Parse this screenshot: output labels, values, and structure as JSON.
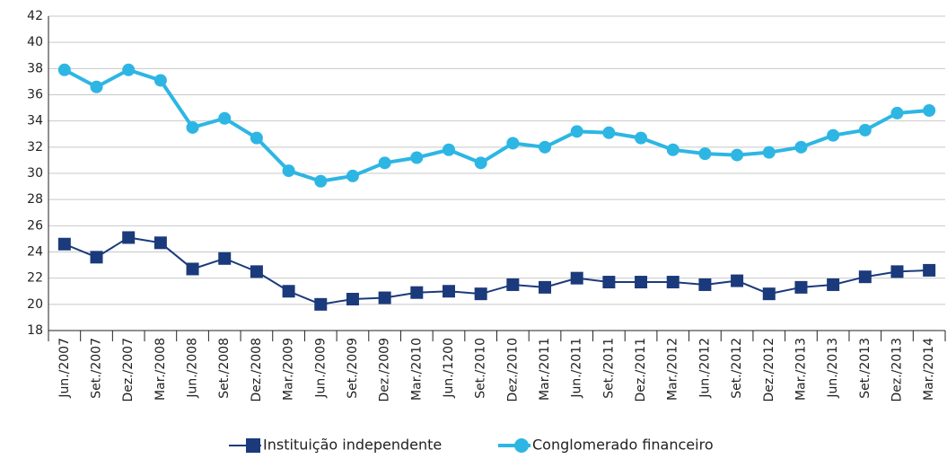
{
  "chart_data": {
    "type": "line",
    "categories": [
      "Jun./2007",
      "Set./2007",
      "Dez./2007",
      "Mar./2008",
      "Jun./2008",
      "Set./2008",
      "Dez./2008",
      "Mar./2009",
      "Jun./2009",
      "Set./2009",
      "Dez./2009",
      "Mar./2010",
      "Jun./1200",
      "Set./2010",
      "Dez./2010",
      "Mar./2011",
      "Jun./2011",
      "Set./2011",
      "Dez./2011",
      "Mar./2012",
      "Jun./2012",
      "Set./2012",
      "Dez./2012",
      "Mar./2013",
      "Jun./2013",
      "Set./2013",
      "Dez./2013",
      "Mar./2014"
    ],
    "series": [
      {
        "name": "Instituição independente",
        "color": "#1b3a7c",
        "marker": "square",
        "values": [
          24.6,
          23.6,
          25.1,
          24.7,
          22.7,
          23.5,
          22.5,
          21.0,
          20.0,
          20.4,
          20.5,
          20.9,
          21.0,
          20.8,
          21.5,
          21.3,
          22.0,
          21.7,
          21.7,
          21.7,
          21.5,
          21.8,
          20.8,
          21.3,
          21.5,
          22.1,
          22.5,
          22.6
        ]
      },
      {
        "name": "Conglomerado financeiro",
        "color": "#2db6e3",
        "marker": "circle",
        "values": [
          37.9,
          36.6,
          37.9,
          37.1,
          33.5,
          34.2,
          32.7,
          30.2,
          29.4,
          29.8,
          30.8,
          31.2,
          31.8,
          30.8,
          32.3,
          32.0,
          33.2,
          33.1,
          32.7,
          31.8,
          31.5,
          31.4,
          31.6,
          32.0,
          32.9,
          33.3,
          34.6,
          34.8
        ]
      }
    ],
    "ylim": [
      18,
      42
    ],
    "yticks": [
      18,
      20,
      22,
      24,
      26,
      28,
      30,
      32,
      34,
      36,
      38,
      40,
      42
    ],
    "grid": true,
    "legend": "bottom"
  }
}
